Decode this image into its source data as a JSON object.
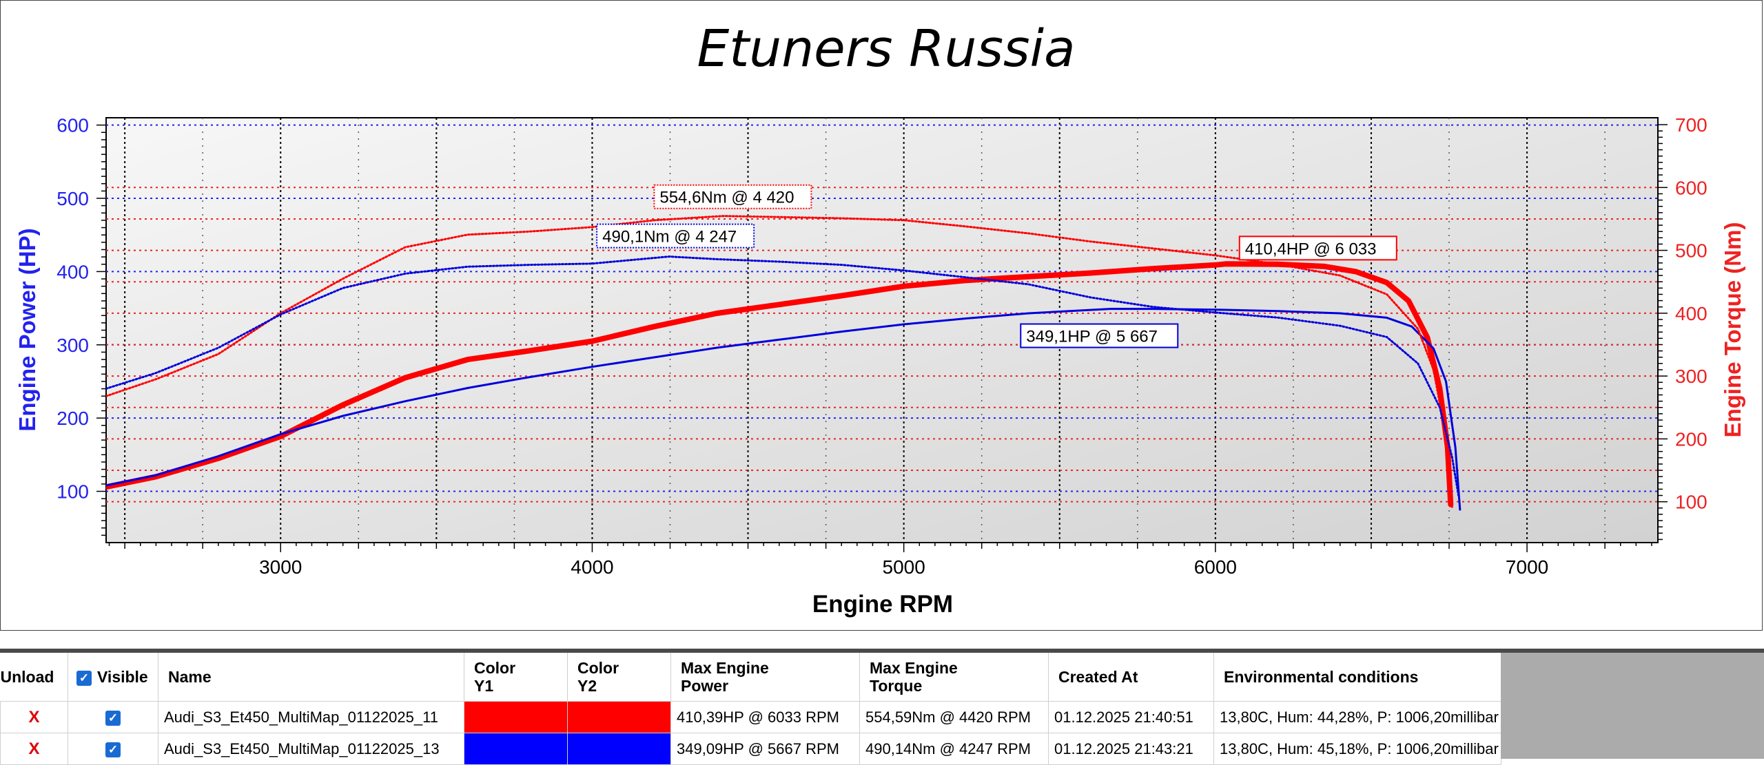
{
  "chart_data": {
    "type": "line",
    "title": "Etuners Russia",
    "xlabel": "Engine RPM",
    "ylabel_left": "Engine Power (HP)",
    "ylabel_right": "Engine Torque (Nm)",
    "xlim": [
      2440,
      7420
    ],
    "ylim_left": [
      30,
      610
    ],
    "ylim_right": [
      35,
      711
    ],
    "x_ticks": [
      3000,
      4000,
      5000,
      6000,
      7000
    ],
    "y_ticks_left": [
      100,
      200,
      300,
      400,
      500,
      600
    ],
    "y_ticks_right": [
      100,
      200,
      300,
      400,
      500,
      600,
      700
    ],
    "grid": true,
    "series": [
      {
        "name": "Audi_S3_Et450_MultiMap_01122025_11",
        "measure": "power",
        "axis": "left",
        "color": "#ff0000",
        "style": "solid",
        "width": 8,
        "points": [
          [
            2440,
            106
          ],
          [
            2600,
            120
          ],
          [
            2800,
            145
          ],
          [
            3000,
            175
          ],
          [
            3200,
            218
          ],
          [
            3400,
            255
          ],
          [
            3600,
            280
          ],
          [
            3800,
            292
          ],
          [
            4000,
            305
          ],
          [
            4200,
            325
          ],
          [
            4400,
            343
          ],
          [
            4600,
            355
          ],
          [
            4800,
            367
          ],
          [
            5000,
            380
          ],
          [
            5200,
            388
          ],
          [
            5400,
            393
          ],
          [
            5600,
            398
          ],
          [
            5800,
            404
          ],
          [
            6000,
            409
          ],
          [
            6033,
            410.4
          ],
          [
            6200,
            410
          ],
          [
            6350,
            407
          ],
          [
            6450,
            400
          ],
          [
            6550,
            385
          ],
          [
            6620,
            360
          ],
          [
            6680,
            310
          ],
          [
            6720,
            240
          ],
          [
            6745,
            160
          ],
          [
            6755,
            82
          ]
        ]
      },
      {
        "name": "Audi_S3_Et450_MultiMap_01122025_13",
        "measure": "power",
        "axis": "left",
        "color": "#0000dd",
        "style": "solid",
        "width": 3,
        "points": [
          [
            2440,
            108
          ],
          [
            2600,
            122
          ],
          [
            2800,
            148
          ],
          [
            3000,
            178
          ],
          [
            3200,
            203
          ],
          [
            3400,
            223
          ],
          [
            3600,
            241
          ],
          [
            3800,
            256
          ],
          [
            4000,
            270
          ],
          [
            4200,
            283
          ],
          [
            4400,
            296
          ],
          [
            4600,
            307
          ],
          [
            4800,
            318
          ],
          [
            5000,
            328
          ],
          [
            5200,
            336
          ],
          [
            5400,
            343
          ],
          [
            5667,
            349.1
          ],
          [
            5800,
            349
          ],
          [
            6000,
            348
          ],
          [
            6200,
            346
          ],
          [
            6400,
            343
          ],
          [
            6550,
            337
          ],
          [
            6630,
            325
          ],
          [
            6700,
            295
          ],
          [
            6740,
            250
          ],
          [
            6770,
            160
          ],
          [
            6785,
            75
          ]
        ]
      },
      {
        "name": "Audi_S3_Et450_MultiMap_01122025_11",
        "measure": "torque",
        "axis": "right",
        "color": "#ff0000",
        "style": "dotted",
        "width": 3,
        "points": [
          [
            2440,
            268
          ],
          [
            2600,
            295
          ],
          [
            2800,
            335
          ],
          [
            3000,
            400
          ],
          [
            3200,
            455
          ],
          [
            3400,
            505
          ],
          [
            3600,
            525
          ],
          [
            3800,
            530
          ],
          [
            4000,
            537
          ],
          [
            4200,
            548
          ],
          [
            4420,
            554.6
          ],
          [
            4600,
            553
          ],
          [
            4800,
            551
          ],
          [
            5000,
            548
          ],
          [
            5200,
            538
          ],
          [
            5400,
            527
          ],
          [
            5600,
            514
          ],
          [
            5800,
            503
          ],
          [
            6000,
            492
          ],
          [
            6200,
            478
          ],
          [
            6400,
            460
          ],
          [
            6550,
            430
          ],
          [
            6650,
            375
          ],
          [
            6700,
            310
          ],
          [
            6730,
            230
          ],
          [
            6750,
            150
          ],
          [
            6760,
            90
          ]
        ]
      },
      {
        "name": "Audi_S3_Et450_MultiMap_01122025_13",
        "measure": "torque",
        "axis": "right",
        "color": "#0000dd",
        "style": "dotted",
        "width": 3,
        "points": [
          [
            2440,
            280
          ],
          [
            2600,
            305
          ],
          [
            2800,
            345
          ],
          [
            3000,
            398
          ],
          [
            3200,
            440
          ],
          [
            3400,
            463
          ],
          [
            3600,
            474
          ],
          [
            3800,
            477
          ],
          [
            4000,
            479
          ],
          [
            4247,
            490.1
          ],
          [
            4400,
            486
          ],
          [
            4600,
            482
          ],
          [
            4800,
            477
          ],
          [
            5000,
            468
          ],
          [
            5200,
            457
          ],
          [
            5400,
            446
          ],
          [
            5600,
            425
          ],
          [
            5800,
            410
          ],
          [
            6000,
            401
          ],
          [
            6200,
            393
          ],
          [
            6400,
            380
          ],
          [
            6550,
            362
          ],
          [
            6650,
            320
          ],
          [
            6720,
            250
          ],
          [
            6760,
            170
          ],
          [
            6780,
            110
          ]
        ]
      }
    ],
    "annotations": [
      {
        "text": "554,6Nm @ 4 420",
        "x": 4420,
        "y": 554.6,
        "axis": "right",
        "color": "#ff0000"
      },
      {
        "text": "490,1Nm @ 4 247",
        "x": 4247,
        "y": 490.1,
        "axis": "right",
        "color": "#0000dd"
      },
      {
        "text": "410,4HP @ 6 033",
        "x": 6033,
        "y": 410.4,
        "axis": "left",
        "color": "#ff0000"
      },
      {
        "text": "349,1HP @ 5 667",
        "x": 5667,
        "y": 349.1,
        "axis": "left",
        "color": "#0000dd"
      }
    ]
  },
  "table": {
    "headers": {
      "unload": "Unload",
      "visible": "Visible",
      "name": "Name",
      "color_y1_line1": "Color",
      "color_y1_line2": "Y1",
      "color_y2_line1": "Color",
      "color_y2_line2": "Y2",
      "max_power_line1": "Max Engine",
      "max_power_line2": "Power",
      "max_torque_line1": "Max Engine",
      "max_torque_line2": "Torque",
      "created_at": "Created At",
      "env": "Environmental conditions"
    },
    "check_glyph": "✓",
    "rows": [
      {
        "unload": "X",
        "name": "Audi_S3_Et450_MultiMap_01122025_11",
        "color_y1": "#ff0000",
        "color_y2": "#ff0000",
        "max_power": "410,39HP @ 6033 RPM",
        "max_torque": "554,59Nm @ 4420 RPM",
        "created_at": "01.12.2025 21:40:51",
        "env": "13,80C, Hum: 44,28%, P: 1006,20millibar"
      },
      {
        "unload": "X",
        "name": "Audi_S3_Et450_MultiMap_01122025_13",
        "color_y1": "#0000ff",
        "color_y2": "#0000ff",
        "max_power": "349,09HP @ 5667 RPM",
        "max_torque": "490,14Nm @ 4247 RPM",
        "created_at": "01.12.2025 21:43:21",
        "env": "13,80C, Hum: 45,18%, P: 1006,20millibar"
      }
    ]
  }
}
